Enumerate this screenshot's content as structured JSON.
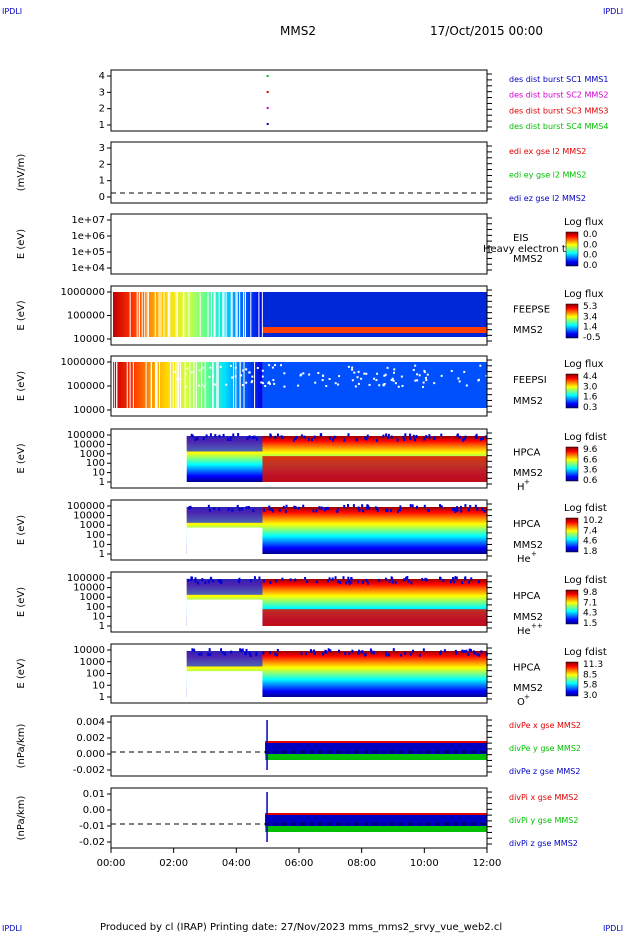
{
  "corner_mark": "IPDLI",
  "header": {
    "mission": "MMS2",
    "date": "17/Oct/2015 00:00"
  },
  "footer": {
    "text": "Produced by cl (IRAP)   Printing date: 27/Nov/2023   mms_mms2_srvy_vue_web2.cl"
  },
  "x_ticks": [
    "00:00",
    "02:00",
    "04:00",
    "06:00",
    "08:00",
    "10:00",
    "12:00"
  ],
  "colors": {
    "red": "#e00000",
    "magenta": "#d000d0",
    "green": "#00c000",
    "blue": "#0000c0"
  },
  "panels": [
    {
      "id": "burst",
      "ylabel": "",
      "yticks": [
        "4",
        "3",
        "2",
        "1"
      ],
      "zero_line": false,
      "legend": [
        {
          "text": "des dist burst SC1 MMS1",
          "color": "#0000c0"
        },
        {
          "text": "des dist burst SC2 MMS2",
          "color": "#d000d0"
        },
        {
          "text": "des dist burst SC3 MMS3",
          "color": "#e00000"
        },
        {
          "text": "des dist burst SC4 MMS4",
          "color": "#00c000"
        }
      ]
    },
    {
      "id": "edi",
      "ylabel": "(mV/m)",
      "yticks": [
        "3",
        "2",
        "1",
        "0"
      ],
      "zero_line": true,
      "legend": [
        {
          "text": "edi ex gse l2 MMS2",
          "color": "#e00000"
        },
        {
          "text": "edi ey gse l2 MMS2",
          "color": "#00c000"
        },
        {
          "text": "edi ez gse l2 MMS2",
          "color": "#0000c0"
        }
      ]
    },
    {
      "id": "eis",
      "ylabel": "E (eV)",
      "yticks": [
        "1e+07",
        "1e+06",
        "1e+05",
        "1e+04"
      ],
      "right": [
        "EIS",
        "MMS2"
      ],
      "overlay": "Heavy electron to",
      "colorbar": {
        "title": "Log flux",
        "ticks": [
          "0.0",
          "0.0",
          "0.0",
          "0.0"
        ]
      }
    },
    {
      "id": "feepse",
      "ylabel": "E (eV)",
      "yticks": [
        "1000000",
        "100000",
        "10000"
      ],
      "right": [
        "FEEPSE",
        "MMS2"
      ],
      "colorbar": {
        "title": "Log flux",
        "ticks": [
          "5.3",
          "3.4",
          "1.4",
          "-0.5"
        ]
      }
    },
    {
      "id": "feepsi",
      "ylabel": "E (eV)",
      "yticks": [
        "1000000",
        "100000",
        "10000"
      ],
      "right": [
        "FEEPSI",
        "MMS2"
      ],
      "colorbar": {
        "title": "Log flux",
        "ticks": [
          "4.4",
          "3.0",
          "1.6",
          "0.3"
        ]
      }
    },
    {
      "id": "hpca_h",
      "ylabel": "E (eV)",
      "yticks": [
        "100000",
        "10000",
        "1000",
        "100",
        "10",
        "1"
      ],
      "right": [
        "HPCA",
        "MMS2"
      ],
      "species": "H",
      "sup": "+",
      "colorbar": {
        "title": "Log fdist",
        "ticks": [
          "9.6",
          "6.6",
          "3.6",
          "0.6"
        ]
      }
    },
    {
      "id": "hpca_he",
      "ylabel": "E (eV)",
      "yticks": [
        "100000",
        "10000",
        "1000",
        "100",
        "10",
        "1"
      ],
      "right": [
        "HPCA",
        "MMS2"
      ],
      "species": "He",
      "sup": "+",
      "colorbar": {
        "title": "Log fdist",
        "ticks": [
          "10.2",
          "7.4",
          "4.6",
          "1.8"
        ]
      }
    },
    {
      "id": "hpca_hepp",
      "ylabel": "E (eV)",
      "yticks": [
        "100000",
        "10000",
        "1000",
        "100",
        "10",
        "1"
      ],
      "right": [
        "HPCA",
        "MMS2"
      ],
      "species": "He",
      "sup": "++",
      "colorbar": {
        "title": "Log fdist",
        "ticks": [
          "9.8",
          "7.1",
          "4.3",
          "1.5"
        ]
      }
    },
    {
      "id": "hpca_o",
      "ylabel": "E (eV)",
      "yticks": [
        "10000",
        "1000",
        "100",
        "10",
        "1"
      ],
      "right": [
        "HPCA",
        "MMS2"
      ],
      "species": "O",
      "sup": "+",
      "colorbar": {
        "title": "Log fdist",
        "ticks": [
          "11.3",
          "8.5",
          "5.8",
          "3.0"
        ]
      }
    },
    {
      "id": "divpe",
      "ylabel": "(nPa/km)",
      "yticks": [
        "0.004",
        "0.002",
        "0.000",
        "-0.002"
      ],
      "zero_line": true,
      "legend": [
        {
          "text": "divPe x gse MMS2",
          "color": "#e00000"
        },
        {
          "text": "divPe y gse MMS2",
          "color": "#00c000"
        },
        {
          "text": "divPe z gse MMS2",
          "color": "#0000c0"
        }
      ]
    },
    {
      "id": "divpi",
      "ylabel": "(nPa/km)",
      "yticks": [
        "0.01",
        "0.00",
        "-0.01",
        "-0.02"
      ],
      "zero_line": true,
      "legend": [
        {
          "text": "divPi x gse MMS2",
          "color": "#e00000"
        },
        {
          "text": "divPi y gse MMS2",
          "color": "#00c000"
        },
        {
          "text": "divPi z gse MMS2",
          "color": "#0000c0"
        }
      ]
    }
  ],
  "chart_data": {
    "type": "heatmap",
    "title": "MMS2  17/Oct/2015 00:00",
    "x_range": [
      "00:00",
      "12:00"
    ],
    "burst_marks": [
      {
        "sc": "SC1 MMS1",
        "time": "05:00",
        "value": 1
      },
      {
        "sc": "SC2 MMS2",
        "time": "05:00",
        "value": 2
      },
      {
        "sc": "SC3 MMS3",
        "time": "05:00",
        "value": 3
      },
      {
        "sc": "SC4 MMS4",
        "time": "05:00",
        "value": 4
      }
    ],
    "spectrogram_coverage": [
      {
        "panel": "FEEPSE",
        "start": "00:00",
        "end": "12:00"
      },
      {
        "panel": "FEEPSI",
        "start": "00:00",
        "end": "12:00"
      },
      {
        "panel": "HPCA H+",
        "start": "02:25",
        "end": "12:00"
      },
      {
        "panel": "HPCA He+",
        "start": "02:25",
        "end": "12:00"
      },
      {
        "panel": "HPCA He++",
        "start": "02:25",
        "end": "12:00"
      },
      {
        "panel": "HPCA O+",
        "start": "02:25",
        "end": "12:00"
      }
    ],
    "divp_start": "04:55"
  }
}
